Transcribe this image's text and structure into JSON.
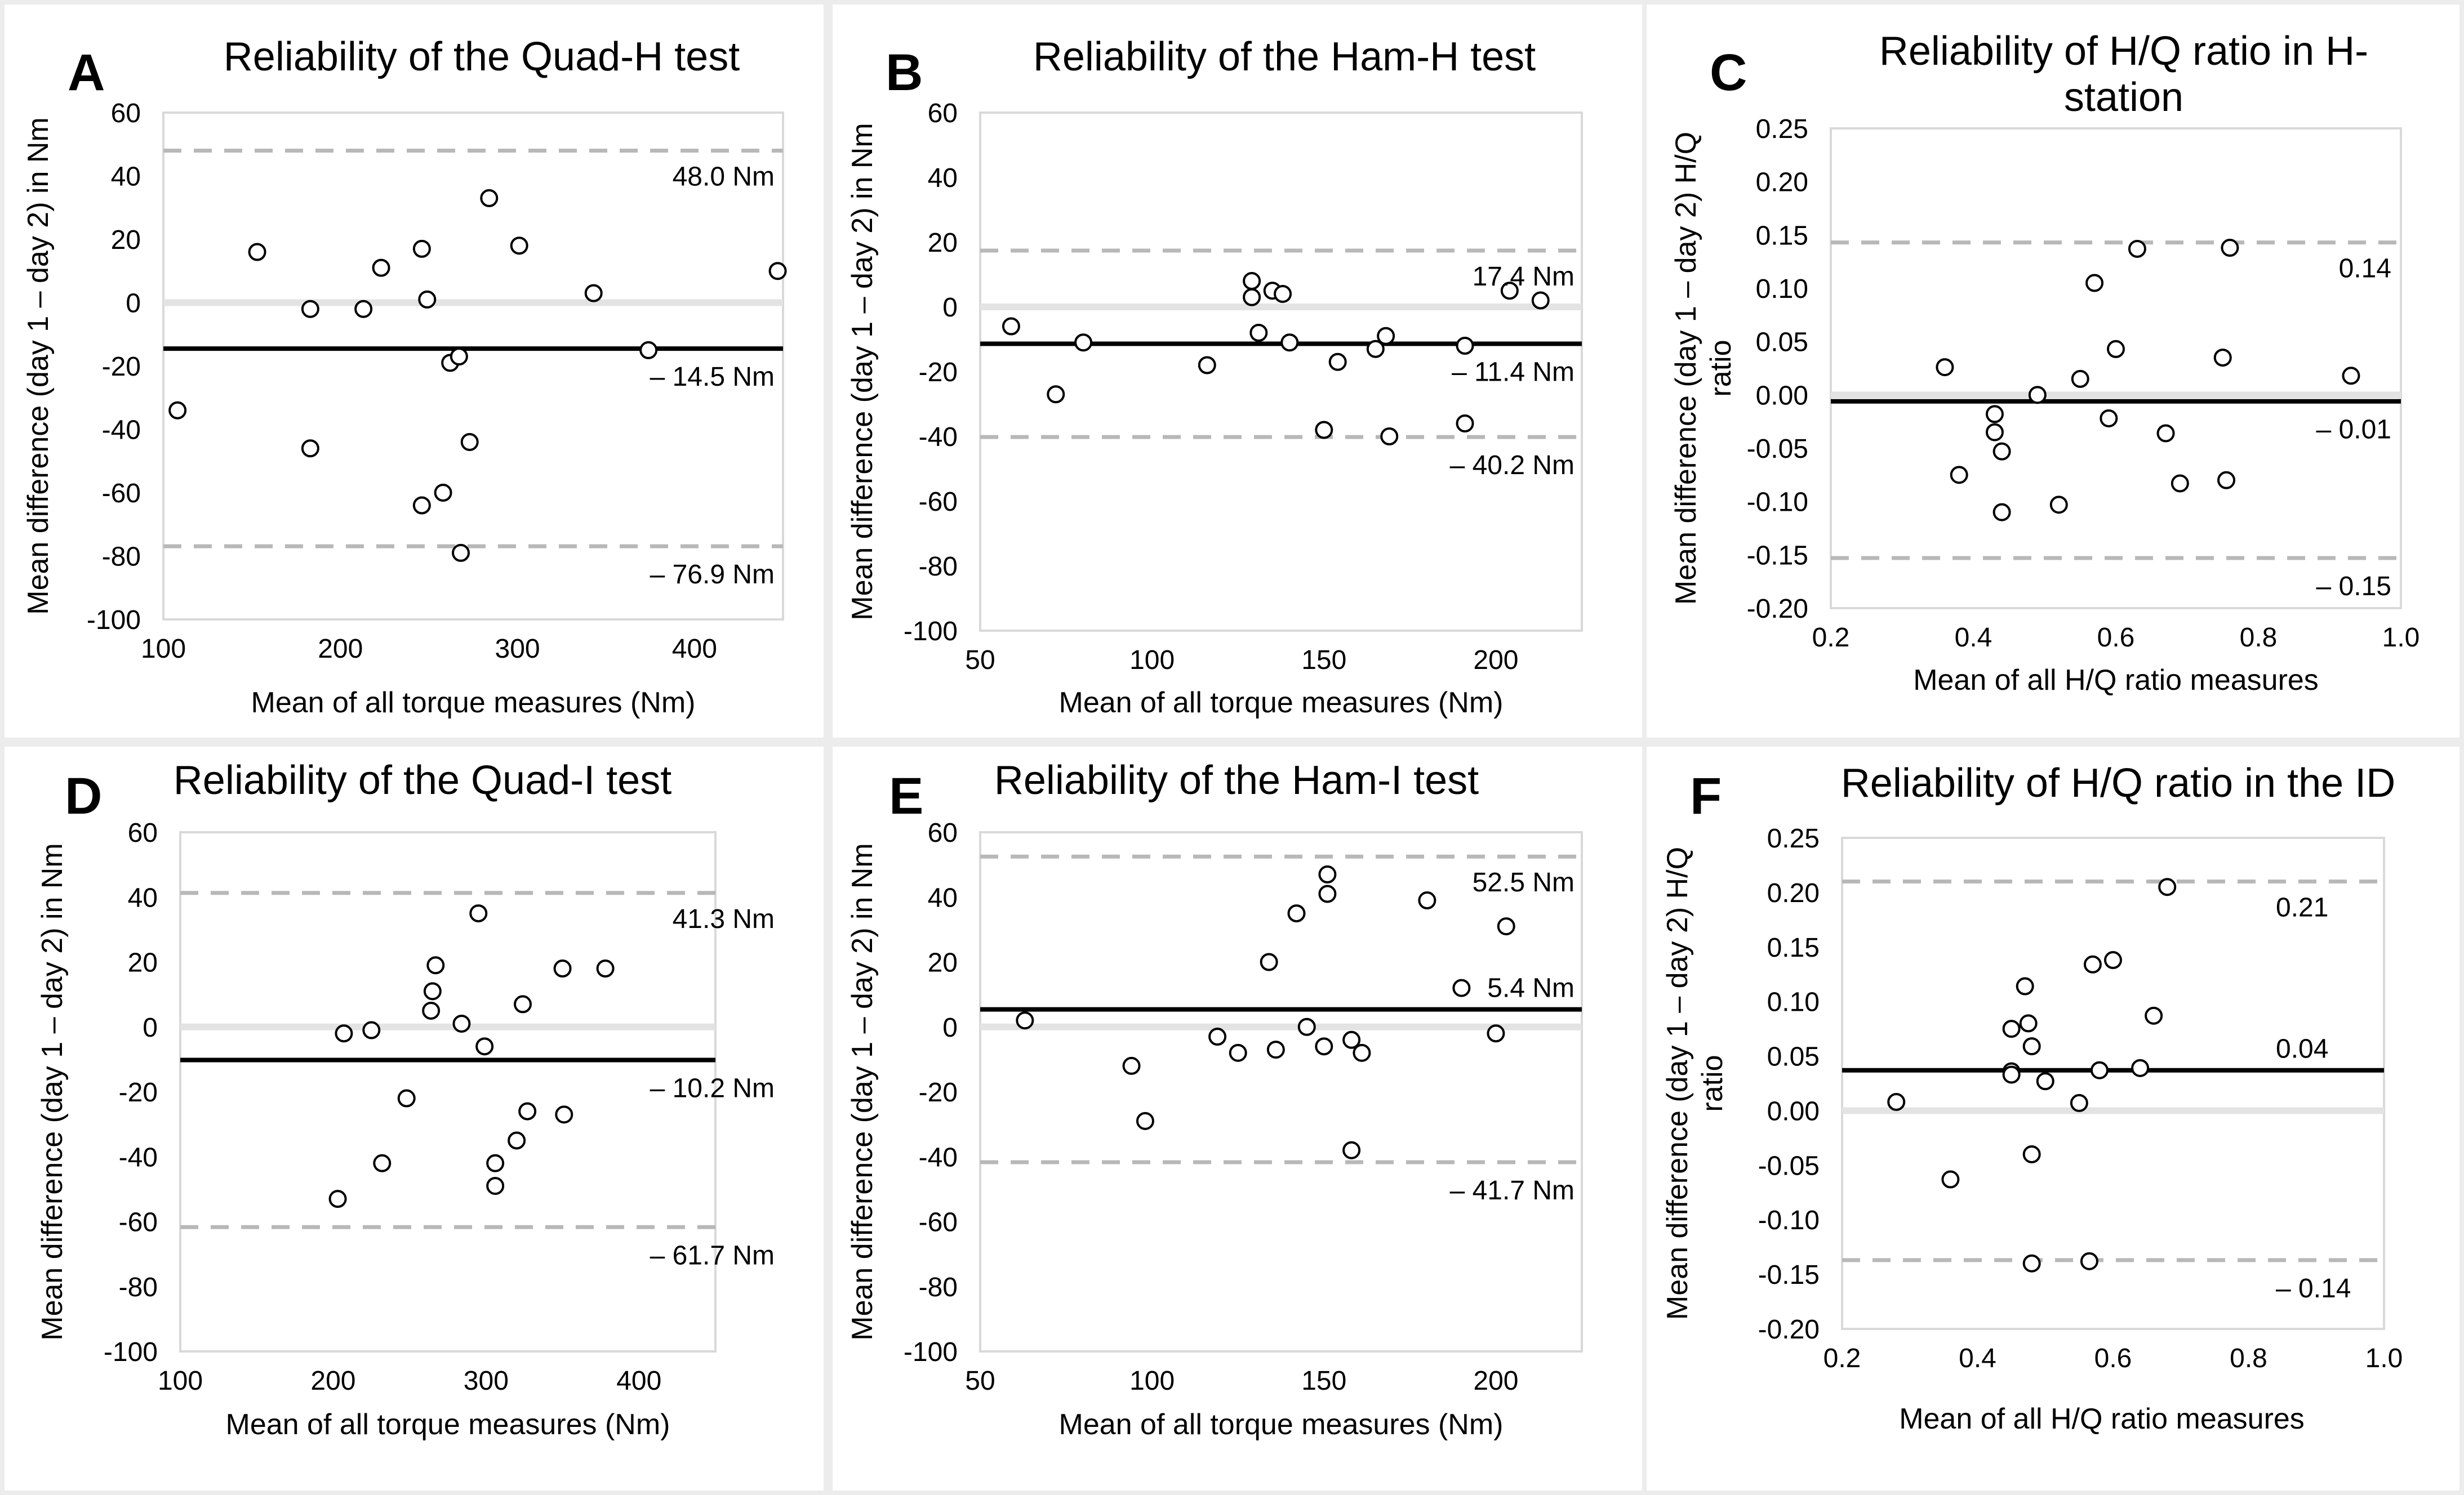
{
  "chart_data": [
    {
      "id": "A",
      "type": "scatter",
      "letter": "A",
      "title": "Reliability of the Quad-H test",
      "xlabel": "Mean of all torque measures (Nm)",
      "ylabel": "Mean difference (day 1 – day 2) in Nm",
      "xlim": [
        100,
        450
      ],
      "ylim": [
        -100,
        60
      ],
      "xticks": [
        100,
        200,
        300,
        400
      ],
      "xtick_labels": [
        "100",
        "200",
        "300",
        "400"
      ],
      "yticks": [
        60,
        40,
        20,
        0,
        -20,
        -40,
        -60,
        -80,
        -100
      ],
      "ytick_labels": [
        "60",
        "40",
        "20",
        "0",
        "-20",
        "-40",
        "-60",
        "-80",
        "-100"
      ],
      "bias": -14.5,
      "loa_upper": 48.0,
      "loa_lower": -76.9,
      "bias_label": "– 14.5 Nm",
      "upper_label": "48.0 Nm",
      "lower_label": "– 76.9 Nm",
      "points": [
        [
          108,
          -34
        ],
        [
          153,
          16
        ],
        [
          183,
          -2
        ],
        [
          183,
          -46
        ],
        [
          213,
          -2
        ],
        [
          223,
          11
        ],
        [
          246,
          17
        ],
        [
          249,
          1
        ],
        [
          246,
          -64
        ],
        [
          258,
          -60
        ],
        [
          262,
          -19
        ],
        [
          267,
          -17
        ],
        [
          268,
          -79
        ],
        [
          273,
          -44
        ],
        [
          284,
          33
        ],
        [
          301,
          18
        ],
        [
          343,
          3
        ],
        [
          374,
          -15
        ],
        [
          447,
          10
        ]
      ]
    },
    {
      "id": "B",
      "type": "scatter",
      "letter": "B",
      "title": "Reliability of the Ham-H test",
      "xlabel": "Mean of all torque measures (Nm)",
      "ylabel": "Mean difference (day 1 – day 2) in Nm",
      "xlim": [
        50,
        225
      ],
      "ylim": [
        -100,
        60
      ],
      "xticks": [
        50,
        100,
        150,
        200
      ],
      "xtick_labels": [
        "50",
        "100",
        "150",
        "200"
      ],
      "yticks": [
        60,
        40,
        20,
        0,
        -20,
        -40,
        -60,
        -80,
        -100
      ],
      "ytick_labels": [
        "60",
        "40",
        "20",
        "0",
        "-20",
        "-40",
        "-60",
        "-80",
        "-100"
      ],
      "bias": -11.4,
      "loa_upper": 17.4,
      "loa_lower": -40.2,
      "bias_label": "– 11.4 Nm",
      "upper_label": "17.4 Nm",
      "lower_label": "– 40.2 Nm",
      "points": [
        [
          59,
          -6
        ],
        [
          72,
          -27
        ],
        [
          80,
          -11
        ],
        [
          116,
          -18
        ],
        [
          129,
          8
        ],
        [
          129,
          3
        ],
        [
          131,
          -8
        ],
        [
          135,
          5
        ],
        [
          138,
          4
        ],
        [
          140,
          -11
        ],
        [
          150,
          -38
        ],
        [
          154,
          -17
        ],
        [
          165,
          -13
        ],
        [
          168,
          -9
        ],
        [
          169,
          -40
        ],
        [
          191,
          -12
        ],
        [
          191,
          -36
        ],
        [
          204,
          5
        ],
        [
          213,
          2
        ]
      ]
    },
    {
      "id": "C",
      "type": "scatter",
      "letter": "C",
      "title": "Reliability of H/Q ratio in H-station",
      "title_lines": [
        "Reliability of H/Q ratio in H-",
        "station"
      ],
      "xlabel": "Mean of all H/Q ratio measures",
      "ylabel": "Mean difference (day 1 – day 2) H/Q ratio",
      "ylabel_lines": [
        "Mean difference (day 1 – day 2) H/Q",
        "ratio"
      ],
      "xlim": [
        0.2,
        1.0
      ],
      "ylim": [
        -0.2,
        0.25
      ],
      "xticks": [
        0.2,
        0.4,
        0.6,
        0.8,
        1.0
      ],
      "xtick_labels": [
        "0.2",
        "0.4",
        "0.6",
        "0.8",
        "1.0"
      ],
      "yticks": [
        0.25,
        0.2,
        0.15,
        0.1,
        0.05,
        0.0,
        -0.05,
        -0.1,
        -0.15,
        -0.2
      ],
      "ytick_labels": [
        "0.25",
        "0.20",
        "0.15",
        "0.10",
        "0.05",
        "0.00",
        "-0.05",
        "-0.10",
        "-0.15",
        "-0.20"
      ],
      "bias": -0.006,
      "loa_upper": 0.143,
      "loa_lower": -0.153,
      "bias_label": "– 0.01",
      "upper_label": "0.14",
      "lower_label": "– 0.15",
      "points": [
        [
          0.36,
          0.026
        ],
        [
          0.38,
          -0.075
        ],
        [
          0.43,
          -0.018
        ],
        [
          0.43,
          -0.035
        ],
        [
          0.44,
          -0.053
        ],
        [
          0.44,
          -0.11
        ],
        [
          0.49,
          0.0
        ],
        [
          0.52,
          -0.103
        ],
        [
          0.55,
          0.015
        ],
        [
          0.57,
          0.105
        ],
        [
          0.59,
          -0.022
        ],
        [
          0.6,
          0.043
        ],
        [
          0.63,
          0.137
        ],
        [
          0.67,
          -0.036
        ],
        [
          0.69,
          -0.083
        ],
        [
          0.75,
          0.035
        ],
        [
          0.755,
          -0.08
        ],
        [
          0.76,
          0.138
        ],
        [
          0.93,
          0.018
        ]
      ]
    },
    {
      "id": "D",
      "type": "scatter",
      "letter": "D",
      "title": "Reliability of the Quad-I test",
      "xlabel": "Mean of all torque measures (Nm)",
      "ylabel": "Mean difference (day 1 – day 2) in Nm",
      "xlim": [
        100,
        450
      ],
      "ylim": [
        -100,
        60
      ],
      "xticks": [
        100,
        200,
        300,
        400
      ],
      "xtick_labels": [
        "100",
        "200",
        "300",
        "400"
      ],
      "yticks": [
        60,
        40,
        20,
        0,
        -20,
        -40,
        -60,
        -80,
        -100
      ],
      "ytick_labels": [
        "60",
        "40",
        "20",
        "0",
        "-20",
        "-40",
        "-60",
        "-80",
        "-100"
      ],
      "bias": -10.2,
      "loa_upper": 41.3,
      "loa_lower": -61.7,
      "bias_label": "– 10.2 Nm",
      "upper_label": "41.3 Nm",
      "lower_label": "– 61.7 Nm",
      "points": [
        [
          203,
          -53
        ],
        [
          207,
          -2
        ],
        [
          225,
          -1
        ],
        [
          232,
          -42
        ],
        [
          248,
          -22
        ],
        [
          264,
          5
        ],
        [
          265,
          11
        ],
        [
          267,
          19
        ],
        [
          284,
          1
        ],
        [
          295,
          35
        ],
        [
          299,
          -6
        ],
        [
          306,
          -42
        ],
        [
          306,
          -49
        ],
        [
          320,
          -35
        ],
        [
          324,
          7
        ],
        [
          327,
          -26
        ],
        [
          350,
          18
        ],
        [
          351,
          -27
        ],
        [
          378,
          18
        ]
      ]
    },
    {
      "id": "E",
      "type": "scatter",
      "letter": "E",
      "title": "Reliability of the Ham-I test",
      "xlabel": "Mean of all torque measures (Nm)",
      "ylabel": "Mean difference (day 1 – day 2) in Nm",
      "xlim": [
        50,
        225
      ],
      "ylim": [
        -100,
        60
      ],
      "xticks": [
        50,
        100,
        150,
        200
      ],
      "xtick_labels": [
        "50",
        "100",
        "150",
        "200"
      ],
      "yticks": [
        60,
        40,
        20,
        0,
        -20,
        -40,
        -60,
        -80,
        -100
      ],
      "ytick_labels": [
        "60",
        "40",
        "20",
        "0",
        "-20",
        "-40",
        "-60",
        "-80",
        "-100"
      ],
      "bias": 5.4,
      "loa_upper": 52.5,
      "loa_lower": -41.7,
      "bias_label": "5.4 Nm",
      "upper_label": "52.5 Nm",
      "lower_label": "– 41.7 Nm",
      "points": [
        [
          63,
          2
        ],
        [
          94,
          -12
        ],
        [
          98,
          -29
        ],
        [
          119,
          -3
        ],
        [
          125,
          -8
        ],
        [
          134,
          20
        ],
        [
          136,
          -7
        ],
        [
          142,
          35
        ],
        [
          145,
          0
        ],
        [
          150,
          -6
        ],
        [
          151,
          41
        ],
        [
          151,
          47
        ],
        [
          158,
          -4
        ],
        [
          158,
          -38
        ],
        [
          161,
          -8
        ],
        [
          180,
          39
        ],
        [
          190,
          12
        ],
        [
          200,
          -2
        ],
        [
          203,
          31
        ]
      ]
    },
    {
      "id": "F",
      "type": "scatter",
      "letter": "F",
      "title": "Reliability of H/Q ratio in the ID",
      "xlabel": "Mean of all H/Q ratio measures",
      "ylabel": "Mean difference (day 1 – day 2) H/Q ratio",
      "ylabel_lines": [
        "Mean difference (day 1 – day 2) H/Q",
        "ratio"
      ],
      "xlim": [
        0.2,
        1.0
      ],
      "ylim": [
        -0.2,
        0.25
      ],
      "xticks": [
        0.2,
        0.4,
        0.6,
        0.8,
        1.0
      ],
      "xtick_labels": [
        "0.2",
        "0.4",
        "0.6",
        "0.8",
        "1.0"
      ],
      "yticks": [
        0.25,
        0.2,
        0.15,
        0.1,
        0.05,
        0.0,
        -0.05,
        -0.1,
        -0.15,
        -0.2
      ],
      "ytick_labels": [
        "0.25",
        "0.20",
        "0.15",
        "0.10",
        "0.05",
        "0.00",
        "-0.05",
        "-0.10",
        "-0.15",
        "-0.20"
      ],
      "bias": 0.037,
      "loa_upper": 0.21,
      "loa_lower": -0.137,
      "bias_label": "0.04",
      "upper_label": "0.21",
      "lower_label": "– 0.14",
      "points": [
        [
          0.28,
          0.008
        ],
        [
          0.36,
          -0.063
        ],
        [
          0.45,
          0.075
        ],
        [
          0.45,
          0.036
        ],
        [
          0.45,
          0.033
        ],
        [
          0.47,
          0.114
        ],
        [
          0.475,
          0.08
        ],
        [
          0.48,
          0.059
        ],
        [
          0.48,
          -0.04
        ],
        [
          0.48,
          -0.14
        ],
        [
          0.5,
          0.027
        ],
        [
          0.55,
          0.007
        ],
        [
          0.565,
          -0.138
        ],
        [
          0.57,
          0.134
        ],
        [
          0.58,
          0.037
        ],
        [
          0.6,
          0.138
        ],
        [
          0.64,
          0.039
        ],
        [
          0.66,
          0.087
        ],
        [
          0.68,
          0.205
        ]
      ]
    }
  ]
}
